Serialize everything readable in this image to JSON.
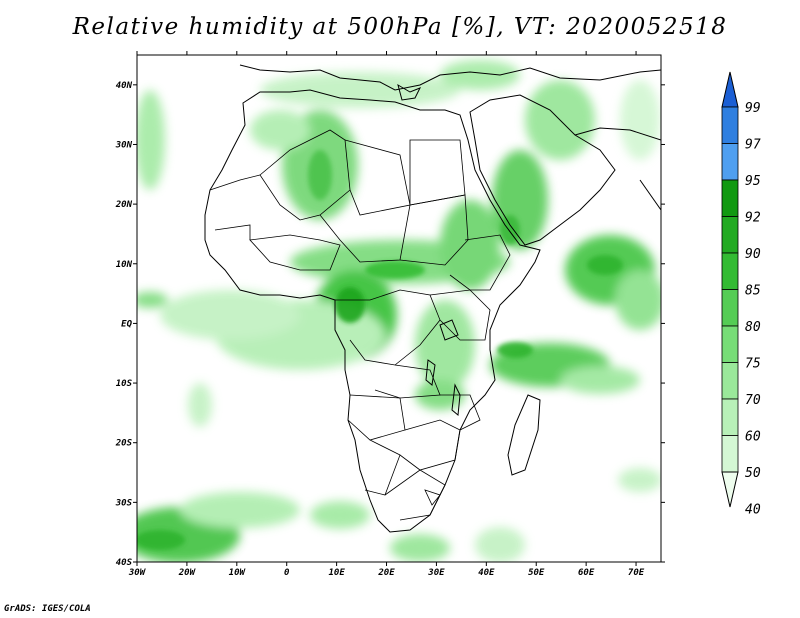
{
  "title": "Relative humidity at 500hPa [%], VT: 2020052518",
  "credit": "GrADS: IGES/COLA",
  "map": {
    "lon_range": [
      -30,
      75
    ],
    "lat_range": [
      -40,
      45
    ],
    "x_ticks": [
      "30W",
      "20W",
      "10W",
      "0",
      "10E",
      "20E",
      "30E",
      "40E",
      "50E",
      "60E",
      "70E"
    ],
    "y_ticks": [
      "40N",
      "30N",
      "20N",
      "10N",
      "EQ",
      "10S",
      "20S",
      "30S",
      "40S"
    ],
    "region": "Africa",
    "moist_areas": [
      {
        "name": "sahel-band",
        "level": 80
      },
      {
        "name": "congo-basin",
        "level": 90
      },
      {
        "name": "ethiopian-highlands",
        "level": 85
      },
      {
        "name": "red-sea-arabia",
        "level": 85
      },
      {
        "name": "north-africa",
        "level": 80
      },
      {
        "name": "arabian-sea-swirl",
        "level": 90
      },
      {
        "name": "indian-ocean-band",
        "level": 90
      },
      {
        "name": "gulf-of-guinea",
        "level": 75
      },
      {
        "name": "south-atlantic-band",
        "level": 92
      },
      {
        "name": "mediterranean",
        "level": 75
      },
      {
        "name": "east-africa-lakes",
        "level": 85
      }
    ]
  },
  "colorbar": {
    "labels": [
      "99",
      "97",
      "95",
      "92",
      "90",
      "85",
      "80",
      "75",
      "70",
      "60",
      "50",
      "40"
    ],
    "colors": [
      "#1b5fd4",
      "#2f7fe0",
      "#4f9ff0",
      "#119911",
      "#22aa22",
      "#33bb33",
      "#55cc55",
      "#77dd77",
      "#9ae89a",
      "#b8f0b8",
      "#d4f7d4",
      "#eefdee"
    ]
  }
}
